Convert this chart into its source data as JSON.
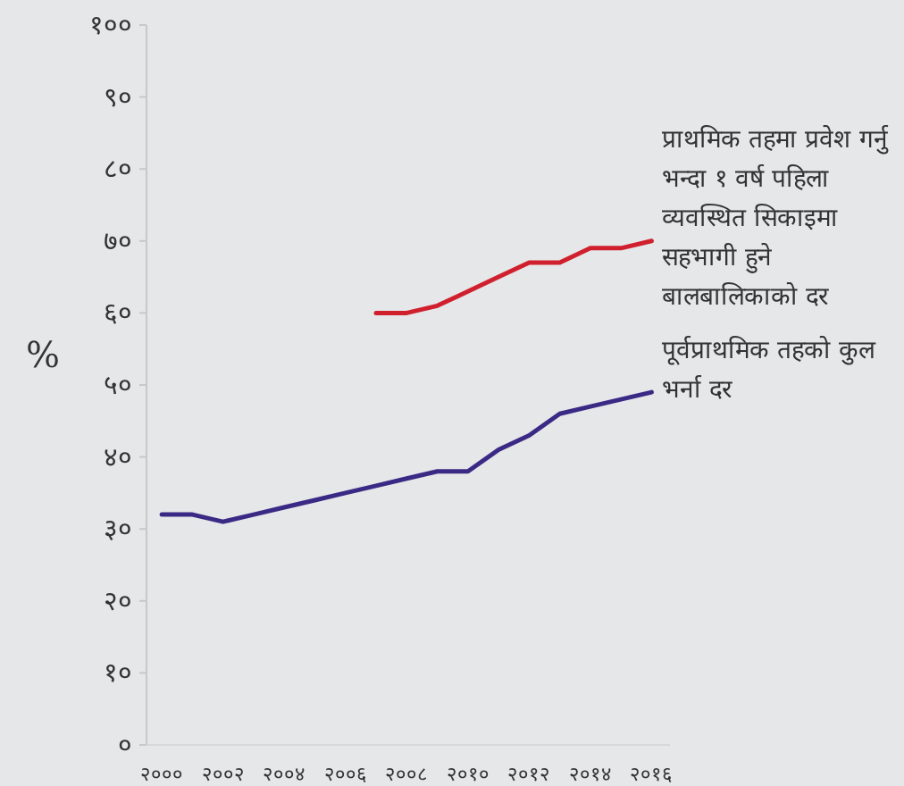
{
  "chart_data": {
    "type": "line",
    "ylabel": "%",
    "x": [
      2000,
      2001,
      2002,
      2003,
      2004,
      2005,
      2006,
      2007,
      2008,
      2009,
      2010,
      2011,
      2012,
      2013,
      2014,
      2015,
      2016
    ],
    "series": [
      {
        "name": "प्राथमिक तहमा प्रवेश गर्नु भन्दा १ वर्ष पहिला व्यवस्थित सिकाइमा सहभागी हुने बालबालिकाको दर",
        "color": "#d0202e",
        "values": [
          null,
          null,
          null,
          null,
          null,
          null,
          null,
          60,
          60,
          61,
          63,
          65,
          67,
          67,
          69,
          69,
          70
        ]
      },
      {
        "name": "पूर्वप्राथमिक तहको कुल भर्ना दर",
        "color": "#3b2a85",
        "values": [
          32,
          32,
          31,
          32,
          33,
          34,
          35,
          36,
          37,
          38,
          38,
          41,
          43,
          46,
          47,
          48,
          49
        ]
      }
    ],
    "xlim": [
      1999.5,
      2016.6
    ],
    "xticks": [
      {
        "value": 2000,
        "label": "२०००"
      },
      {
        "value": 2002,
        "label": "२००२"
      },
      {
        "value": 2004,
        "label": "२००४"
      },
      {
        "value": 2006,
        "label": "२००६"
      },
      {
        "value": 2008,
        "label": "२००८"
      },
      {
        "value": 2010,
        "label": "२०१०"
      },
      {
        "value": 2012,
        "label": "२०१२"
      },
      {
        "value": 2014,
        "label": "२०१४"
      },
      {
        "value": 2016,
        "label": "२०१६"
      }
    ],
    "ylim": [
      0,
      100
    ],
    "yticks": [
      {
        "value": 0,
        "label": "०"
      },
      {
        "value": 10,
        "label": "१०"
      },
      {
        "value": 20,
        "label": "२०"
      },
      {
        "value": 30,
        "label": "३०"
      },
      {
        "value": 40,
        "label": "४०"
      },
      {
        "value": 50,
        "label": "५०"
      },
      {
        "value": 60,
        "label": "६०"
      },
      {
        "value": 70,
        "label": "७०"
      },
      {
        "value": 80,
        "label": "८०"
      },
      {
        "value": 90,
        "label": "९०"
      },
      {
        "value": 100,
        "label": "१००"
      }
    ],
    "grid": false
  }
}
